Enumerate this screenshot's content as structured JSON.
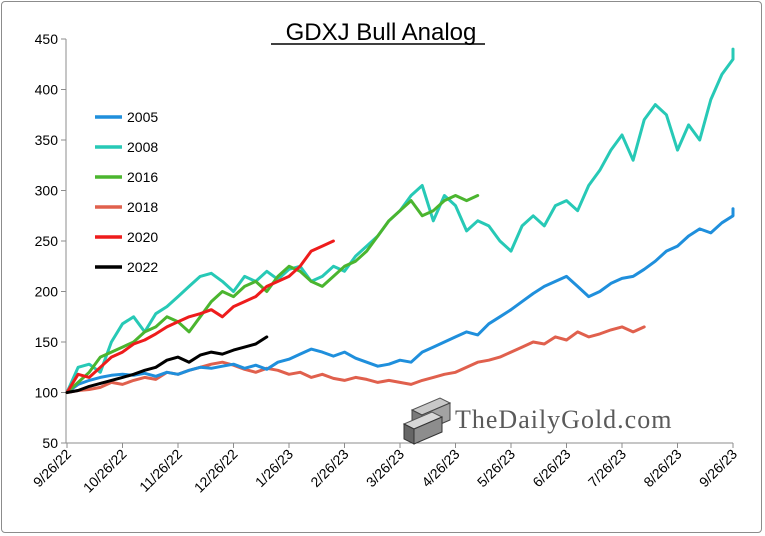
{
  "chart_data": {
    "type": "line",
    "title": "GDXJ Bull Analog",
    "xlabel": "",
    "ylabel": "",
    "ylim": [
      50,
      450
    ],
    "yticks": [
      50,
      100,
      150,
      200,
      250,
      300,
      350,
      400,
      450
    ],
    "xticks": [
      "9/26/22",
      "10/26/22",
      "11/26/22",
      "12/26/22",
      "1/26/23",
      "2/26/23",
      "3/26/23",
      "4/26/23",
      "5/26/23",
      "6/26/23",
      "7/26/23",
      "8/26/23",
      "9/26/23"
    ],
    "grid": false,
    "legend_position": "upper-left",
    "watermark": "TheDailyGold.com",
    "series": [
      {
        "name": "2005",
        "color": "#1f8fdc",
        "points": [
          [
            0,
            100
          ],
          [
            0.2,
            108
          ],
          [
            0.4,
            112
          ],
          [
            0.6,
            115
          ],
          [
            0.8,
            117
          ],
          [
            1,
            118
          ],
          [
            1.2,
            117
          ],
          [
            1.4,
            119
          ],
          [
            1.6,
            116
          ],
          [
            1.8,
            120
          ],
          [
            2,
            118
          ],
          [
            2.2,
            122
          ],
          [
            2.4,
            125
          ],
          [
            2.6,
            124
          ],
          [
            2.8,
            126
          ],
          [
            3,
            128
          ],
          [
            3.2,
            124
          ],
          [
            3.4,
            127
          ],
          [
            3.6,
            123
          ],
          [
            3.8,
            130
          ],
          [
            4,
            133
          ],
          [
            4.2,
            138
          ],
          [
            4.4,
            143
          ],
          [
            4.6,
            140
          ],
          [
            4.8,
            136
          ],
          [
            5,
            140
          ],
          [
            5.2,
            134
          ],
          [
            5.4,
            130
          ],
          [
            5.6,
            126
          ],
          [
            5.8,
            128
          ],
          [
            6,
            132
          ],
          [
            6.2,
            130
          ],
          [
            6.4,
            140
          ],
          [
            6.6,
            145
          ],
          [
            6.8,
            150
          ],
          [
            7,
            155
          ],
          [
            7.2,
            160
          ],
          [
            7.4,
            157
          ],
          [
            7.6,
            168
          ],
          [
            7.8,
            175
          ],
          [
            8,
            182
          ],
          [
            8.2,
            190
          ],
          [
            8.4,
            198
          ],
          [
            8.6,
            205
          ],
          [
            8.8,
            210
          ],
          [
            9,
            215
          ],
          [
            9.2,
            205
          ],
          [
            9.4,
            195
          ],
          [
            9.6,
            200
          ],
          [
            9.8,
            208
          ],
          [
            10,
            213
          ],
          [
            10.2,
            215
          ],
          [
            10.4,
            222
          ],
          [
            10.6,
            230
          ],
          [
            10.8,
            240
          ],
          [
            11,
            245
          ],
          [
            11.2,
            255
          ],
          [
            11.4,
            262
          ],
          [
            11.6,
            258
          ],
          [
            11.8,
            268
          ],
          [
            12,
            275
          ],
          [
            12,
            282
          ]
        ]
      },
      {
        "name": "2008",
        "color": "#27c9b6",
        "points": [
          [
            0,
            100
          ],
          [
            0.2,
            125
          ],
          [
            0.4,
            128
          ],
          [
            0.6,
            120
          ],
          [
            0.8,
            150
          ],
          [
            1,
            168
          ],
          [
            1.2,
            175
          ],
          [
            1.4,
            160
          ],
          [
            1.6,
            178
          ],
          [
            1.8,
            185
          ],
          [
            2,
            195
          ],
          [
            2.2,
            205
          ],
          [
            2.4,
            215
          ],
          [
            2.6,
            218
          ],
          [
            2.8,
            210
          ],
          [
            3,
            200
          ],
          [
            3.2,
            215
          ],
          [
            3.4,
            210
          ],
          [
            3.6,
            220
          ],
          [
            3.8,
            212
          ],
          [
            4,
            222
          ],
          [
            4.2,
            225
          ],
          [
            4.4,
            210
          ],
          [
            4.6,
            215
          ],
          [
            4.8,
            225
          ],
          [
            5,
            220
          ],
          [
            5.2,
            235
          ],
          [
            5.4,
            245
          ],
          [
            5.6,
            255
          ],
          [
            5.8,
            270
          ],
          [
            6,
            280
          ],
          [
            6.2,
            295
          ],
          [
            6.4,
            305
          ],
          [
            6.6,
            270
          ],
          [
            6.8,
            295
          ],
          [
            7,
            285
          ],
          [
            7.2,
            260
          ],
          [
            7.4,
            270
          ],
          [
            7.6,
            265
          ],
          [
            7.8,
            250
          ],
          [
            8,
            240
          ],
          [
            8.2,
            265
          ],
          [
            8.4,
            275
          ],
          [
            8.6,
            265
          ],
          [
            8.8,
            285
          ],
          [
            9,
            290
          ],
          [
            9.2,
            280
          ],
          [
            9.4,
            305
          ],
          [
            9.6,
            320
          ],
          [
            9.8,
            340
          ],
          [
            10,
            355
          ],
          [
            10.2,
            330
          ],
          [
            10.4,
            370
          ],
          [
            10.6,
            385
          ],
          [
            10.8,
            375
          ],
          [
            11,
            340
          ],
          [
            11.2,
            365
          ],
          [
            11.4,
            350
          ],
          [
            11.6,
            390
          ],
          [
            11.8,
            415
          ],
          [
            12,
            430
          ],
          [
            12,
            440
          ]
        ]
      },
      {
        "name": "2016",
        "color": "#4bb52f",
        "points": [
          [
            0,
            100
          ],
          [
            0.2,
            110
          ],
          [
            0.4,
            120
          ],
          [
            0.6,
            135
          ],
          [
            0.8,
            140
          ],
          [
            1,
            145
          ],
          [
            1.2,
            150
          ],
          [
            1.4,
            160
          ],
          [
            1.6,
            165
          ],
          [
            1.8,
            175
          ],
          [
            2,
            170
          ],
          [
            2.2,
            160
          ],
          [
            2.4,
            175
          ],
          [
            2.6,
            190
          ],
          [
            2.8,
            200
          ],
          [
            3,
            195
          ],
          [
            3.2,
            205
          ],
          [
            3.4,
            210
          ],
          [
            3.6,
            200
          ],
          [
            3.8,
            215
          ],
          [
            4,
            225
          ],
          [
            4.2,
            220
          ],
          [
            4.4,
            210
          ],
          [
            4.6,
            205
          ],
          [
            4.8,
            215
          ],
          [
            5,
            225
          ],
          [
            5.2,
            230
          ],
          [
            5.4,
            240
          ],
          [
            5.6,
            255
          ],
          [
            5.8,
            270
          ],
          [
            6,
            280
          ],
          [
            6.2,
            290
          ],
          [
            6.4,
            275
          ],
          [
            6.6,
            280
          ],
          [
            6.8,
            290
          ],
          [
            7,
            295
          ],
          [
            7.2,
            290
          ],
          [
            7.4,
            295
          ]
        ]
      },
      {
        "name": "2018",
        "color": "#e0604d",
        "points": [
          [
            0,
            100
          ],
          [
            0.2,
            102
          ],
          [
            0.4,
            103
          ],
          [
            0.6,
            105
          ],
          [
            0.8,
            110
          ],
          [
            1,
            108
          ],
          [
            1.2,
            112
          ],
          [
            1.4,
            115
          ],
          [
            1.6,
            113
          ],
          [
            1.8,
            120
          ],
          [
            2,
            118
          ],
          [
            2.2,
            122
          ],
          [
            2.4,
            125
          ],
          [
            2.6,
            128
          ],
          [
            2.8,
            130
          ],
          [
            3,
            127
          ],
          [
            3.2,
            123
          ],
          [
            3.4,
            120
          ],
          [
            3.6,
            124
          ],
          [
            3.8,
            122
          ],
          [
            4,
            118
          ],
          [
            4.2,
            120
          ],
          [
            4.4,
            115
          ],
          [
            4.6,
            118
          ],
          [
            4.8,
            114
          ],
          [
            5,
            112
          ],
          [
            5.2,
            115
          ],
          [
            5.4,
            113
          ],
          [
            5.6,
            110
          ],
          [
            5.8,
            112
          ],
          [
            6,
            110
          ],
          [
            6.2,
            108
          ],
          [
            6.4,
            112
          ],
          [
            6.6,
            115
          ],
          [
            6.8,
            118
          ],
          [
            7,
            120
          ],
          [
            7.2,
            125
          ],
          [
            7.4,
            130
          ],
          [
            7.6,
            132
          ],
          [
            7.8,
            135
          ],
          [
            8,
            140
          ],
          [
            8.2,
            145
          ],
          [
            8.4,
            150
          ],
          [
            8.6,
            148
          ],
          [
            8.8,
            155
          ],
          [
            9,
            152
          ],
          [
            9.2,
            160
          ],
          [
            9.4,
            155
          ],
          [
            9.6,
            158
          ],
          [
            9.8,
            162
          ],
          [
            10,
            165
          ],
          [
            10.2,
            160
          ],
          [
            10.4,
            165
          ]
        ]
      },
      {
        "name": "2020",
        "color": "#ee1c1c",
        "points": [
          [
            0,
            100
          ],
          [
            0.2,
            118
          ],
          [
            0.4,
            115
          ],
          [
            0.6,
            125
          ],
          [
            0.8,
            135
          ],
          [
            1,
            140
          ],
          [
            1.2,
            148
          ],
          [
            1.4,
            152
          ],
          [
            1.6,
            158
          ],
          [
            1.8,
            165
          ],
          [
            2,
            170
          ],
          [
            2.2,
            175
          ],
          [
            2.4,
            178
          ],
          [
            2.6,
            182
          ],
          [
            2.8,
            175
          ],
          [
            3,
            185
          ],
          [
            3.2,
            190
          ],
          [
            3.4,
            195
          ],
          [
            3.6,
            205
          ],
          [
            3.8,
            210
          ],
          [
            4,
            215
          ],
          [
            4.2,
            225
          ],
          [
            4.4,
            240
          ],
          [
            4.6,
            245
          ],
          [
            4.8,
            250
          ]
        ]
      },
      {
        "name": "2022",
        "color": "#000000",
        "points": [
          [
            0,
            100
          ],
          [
            0.2,
            102
          ],
          [
            0.4,
            106
          ],
          [
            0.6,
            109
          ],
          [
            0.8,
            112
          ],
          [
            1,
            115
          ],
          [
            1.2,
            118
          ],
          [
            1.4,
            122
          ],
          [
            1.6,
            125
          ],
          [
            1.8,
            132
          ],
          [
            2,
            135
          ],
          [
            2.2,
            130
          ],
          [
            2.4,
            137
          ],
          [
            2.6,
            140
          ],
          [
            2.8,
            138
          ],
          [
            3,
            142
          ],
          [
            3.2,
            145
          ],
          [
            3.4,
            148
          ],
          [
            3.6,
            155
          ]
        ]
      }
    ]
  }
}
